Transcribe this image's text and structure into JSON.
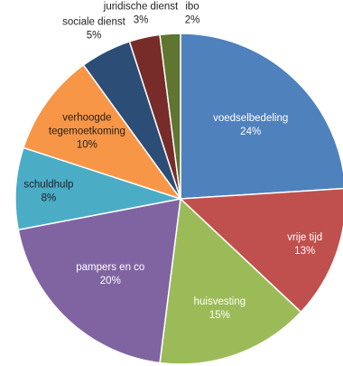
{
  "chart_data": {
    "type": "pie",
    "title": "",
    "slices": [
      {
        "label": "voedselbedeling",
        "value": 24,
        "value_label": "24%",
        "color": "#4f81bd",
        "label_color": "#ffffff"
      },
      {
        "label": "vrije tijd",
        "value": 13,
        "value_label": "13%",
        "color": "#c0504d",
        "label_color": "#ffffff"
      },
      {
        "label": "huisvesting",
        "value": 15,
        "value_label": "15%",
        "color": "#9bbb59",
        "label_color": "#ffffff"
      },
      {
        "label": "pampers en co",
        "value": 20,
        "value_label": "20%",
        "color": "#8064a2",
        "label_color": "#ffffff"
      },
      {
        "label": "schuldhulp",
        "value": 8,
        "value_label": "8%",
        "color": "#4bacc6",
        "label_color": "#1f1f1f"
      },
      {
        "label": "verhoogde tegemoetkoming",
        "value": 10,
        "value_label": "10%",
        "color": "#f79646",
        "label_color": "#1f1f1f"
      },
      {
        "label": "sociale dienst",
        "value": 5,
        "value_label": "5%",
        "color": "#2c4d75",
        "label_color": "#1f1f1f"
      },
      {
        "label": "juridische dienst",
        "value": 3,
        "value_label": "3%",
        "color": "#772c2a",
        "label_color": "#1f1f1f"
      },
      {
        "label": "ibo",
        "value": 2,
        "value_label": "2%",
        "color": "#5f7530",
        "label_color": "#1f1f1f"
      }
    ],
    "legend": "none",
    "start_angle": "top, clockwise"
  }
}
